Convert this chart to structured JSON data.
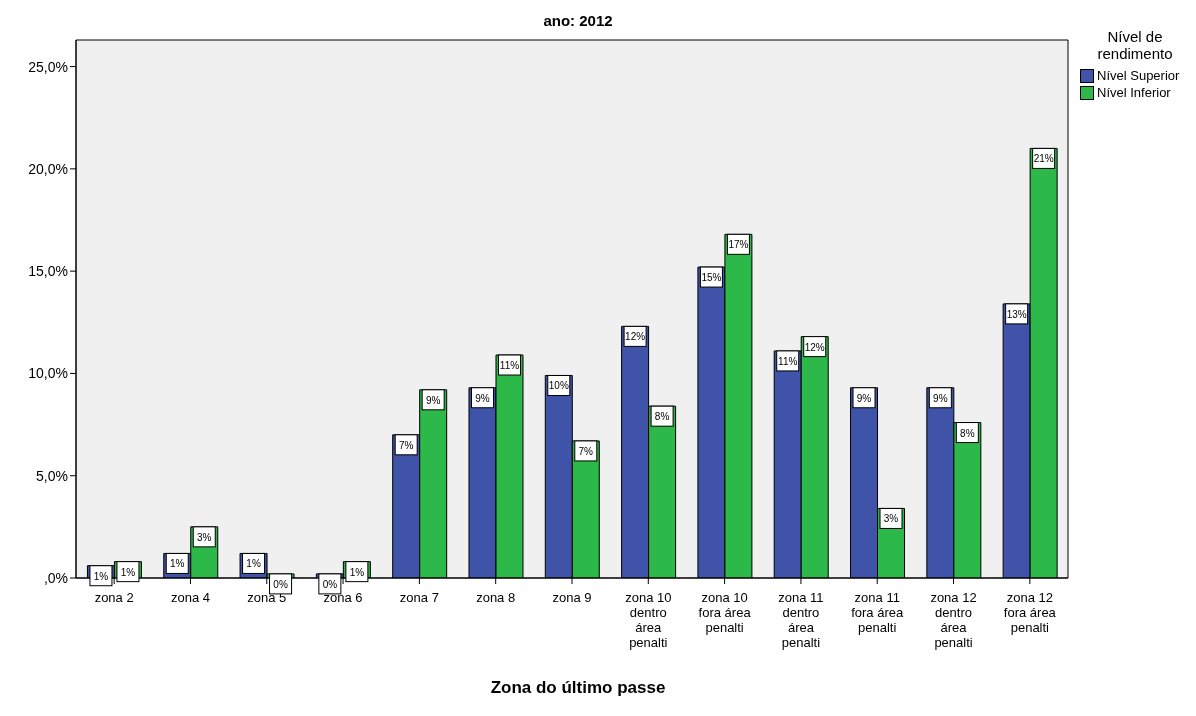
{
  "chart_data": {
    "type": "bar",
    "title": "ano: 2012",
    "xlabel": "Zona do último passe",
    "legend_title": "Nível de rendimento",
    "categories": [
      "zona 2",
      "zona 4",
      "zona 5",
      "zona 6",
      "zona 7",
      "zona 8",
      "zona 9",
      "zona 10 dentro área penalti",
      "zona 10 fora área penalti",
      "zona 11 dentro área penalti",
      "zona 11 fora área penalti",
      "zona 12 dentro área penalti",
      "zona 12 fora área penalti"
    ],
    "series": [
      {
        "name": "Nível Superior",
        "color": "#3f53a8",
        "values": [
          0.6,
          1.2,
          1.2,
          0.2,
          7.0,
          9.3,
          9.9,
          12.3,
          15.2,
          11.1,
          9.3,
          9.3,
          13.4
        ],
        "value_labels": [
          "1%",
          "1%",
          "1%",
          "0%",
          "7%",
          "9%",
          "10%",
          "12%",
          "15%",
          "11%",
          "9%",
          "9%",
          "13%"
        ]
      },
      {
        "name": "Nível Inferior",
        "color": "#2db84a",
        "values": [
          0.8,
          2.5,
          0.2,
          0.8,
          9.2,
          10.9,
          6.7,
          8.4,
          16.8,
          11.8,
          3.4,
          7.6,
          21.0
        ],
        "value_labels": [
          "1%",
          "3%",
          "0%",
          "1%",
          "9%",
          "11%",
          "7%",
          "8%",
          "17%",
          "12%",
          "3%",
          "8%",
          "21%"
        ]
      }
    ],
    "ylim": [
      0,
      26.3
    ],
    "yticks": [
      {
        "value": 0,
        "label": ",0%"
      },
      {
        "value": 5,
        "label": "5,0%"
      },
      {
        "value": 10,
        "label": "10,0%"
      },
      {
        "value": 15,
        "label": "15,0%"
      },
      {
        "value": 20,
        "label": "20,0%"
      },
      {
        "value": 25,
        "label": "25,0%"
      }
    ],
    "grid": false,
    "legend": "top right"
  }
}
